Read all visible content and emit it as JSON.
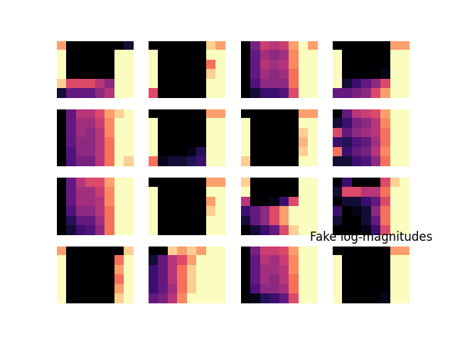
{
  "chart_data": [
    {
      "type": "heatmap",
      "color": "magma",
      "tick_labels": false,
      "cells": [
        [
          0.8,
          0,
          0,
          0,
          0,
          0,
          0,
          0.1
        ],
        [
          1,
          0,
          0,
          0,
          0,
          0,
          1,
          1
        ],
        [
          1,
          0,
          0,
          0,
          0,
          0,
          1,
          1
        ],
        [
          1,
          0,
          0,
          0,
          0,
          0,
          1,
          1
        ],
        [
          0.9,
          0.6,
          0.6,
          0.6,
          0.5,
          0.4,
          1,
          1
        ],
        [
          0.1,
          0.3,
          0.3,
          0.3,
          0.4,
          0.5,
          1,
          1
        ]
      ]
    },
    {
      "type": "heatmap",
      "color": "magma",
      "tick_labels": false,
      "cells": [
        [
          0,
          0,
          0,
          0,
          0,
          0,
          0.9,
          0.8
        ],
        [
          1,
          0,
          0,
          0,
          0,
          0,
          1,
          1
        ],
        [
          1,
          0,
          0,
          0,
          0,
          0,
          0.7,
          1
        ],
        [
          1,
          0,
          0,
          0,
          0,
          0,
          0.9,
          1
        ],
        [
          1,
          0,
          0,
          0,
          0,
          0,
          1,
          1
        ],
        [
          0.6,
          0,
          0,
          0,
          0,
          0,
          1,
          1
        ]
      ]
    },
    {
      "type": "heatmap",
      "color": "magma",
      "tick_labels": false,
      "cells": [
        [
          0,
          0.35,
          0.55,
          0.5,
          0.55,
          0.8,
          1,
          0.8
        ],
        [
          0,
          0.3,
          0.45,
          0.4,
          0.45,
          0.75,
          1,
          1
        ],
        [
          0,
          0.3,
          0.5,
          0.45,
          0.5,
          0.75,
          1,
          1
        ],
        [
          0,
          0.3,
          0.45,
          0.4,
          0.45,
          0.7,
          1,
          1
        ],
        [
          0,
          0.25,
          0.4,
          0.4,
          0.4,
          0.7,
          1,
          1
        ],
        [
          0,
          0.1,
          0.2,
          0.2,
          0.25,
          0.6,
          1,
          1
        ]
      ]
    },
    {
      "type": "heatmap",
      "color": "magma",
      "tick_labels": false,
      "cells": [
        [
          0,
          0,
          0,
          0,
          0,
          0,
          0.8,
          0.8
        ],
        [
          1,
          0,
          0,
          0,
          0,
          0,
          1,
          1
        ],
        [
          1,
          0,
          0,
          0,
          0,
          0,
          1,
          1
        ],
        [
          1,
          0,
          0,
          0,
          0,
          0.05,
          1,
          1
        ],
        [
          1,
          0.1,
          0.2,
          0.3,
          0.4,
          0.6,
          1,
          1
        ],
        [
          0.3,
          0.3,
          0.35,
          0.4,
          0.6,
          0.8,
          1,
          1
        ]
      ]
    },
    {
      "type": "heatmap",
      "color": "magma",
      "tick_labels": false,
      "cells": [
        [
          0,
          0.3,
          0.5,
          0.5,
          0.6,
          0.8,
          0.9,
          1
        ],
        [
          0,
          0.3,
          0.45,
          0.45,
          0.55,
          0.75,
          1,
          1
        ],
        [
          0,
          0.3,
          0.45,
          0.4,
          0.5,
          0.75,
          1,
          1
        ],
        [
          0,
          0.3,
          0.4,
          0.4,
          0.5,
          0.7,
          1,
          1
        ],
        [
          0,
          0.25,
          0.4,
          0.4,
          0.5,
          0.7,
          1,
          1
        ],
        [
          0,
          0.25,
          0.35,
          0.35,
          0.5,
          0.7,
          1,
          0.9
        ]
      ]
    },
    {
      "type": "heatmap",
      "color": "magma",
      "tick_labels": false,
      "cells": [
        [
          0,
          0,
          0,
          0,
          0,
          0,
          0.8,
          0.8
        ],
        [
          1,
          0,
          0,
          0,
          0,
          0,
          1,
          1
        ],
        [
          1,
          0,
          0,
          0,
          0,
          0,
          1,
          1
        ],
        [
          1,
          0,
          0,
          0,
          0,
          0,
          1,
          1
        ],
        [
          1,
          0,
          0,
          0,
          0.05,
          0.15,
          1,
          1
        ],
        [
          0.7,
          0.05,
          0.1,
          0.1,
          0.15,
          0.2,
          1,
          1
        ]
      ]
    },
    {
      "type": "heatmap",
      "color": "magma",
      "tick_labels": false,
      "cells": [
        [
          0,
          0,
          0,
          0,
          0,
          0,
          0.8,
          0.8
        ],
        [
          1,
          0,
          0,
          0,
          0,
          0,
          1,
          1
        ],
        [
          1,
          0,
          0,
          0,
          0,
          0,
          0.9,
          1
        ],
        [
          1,
          0,
          0,
          0,
          0,
          0,
          0.85,
          1
        ],
        [
          1,
          0,
          0,
          0,
          0,
          0,
          0.9,
          1
        ],
        [
          0.9,
          0,
          0,
          0,
          0,
          0,
          1,
          1
        ]
      ]
    },
    {
      "type": "heatmap",
      "color": "magma",
      "tick_labels": false,
      "cells": [
        [
          0,
          0.3,
          0.5,
          0.55,
          0.6,
          0.8,
          1,
          1
        ],
        [
          0.1,
          0.2,
          0.35,
          0.4,
          0.5,
          0.75,
          1,
          1
        ],
        [
          0.6,
          0.3,
          0.4,
          0.45,
          0.5,
          0.7,
          1,
          1
        ],
        [
          0.2,
          0.15,
          0.25,
          0.3,
          0.45,
          0.7,
          1,
          1
        ],
        [
          0.7,
          0.2,
          0.3,
          0.35,
          0.5,
          0.75,
          1,
          1
        ],
        [
          0.1,
          0.1,
          0.2,
          0.25,
          0.4,
          0.7,
          1,
          1
        ]
      ]
    },
    {
      "type": "heatmap",
      "color": "magma",
      "tick_labels": false,
      "cells": [
        [
          0,
          0.3,
          0.5,
          0.6,
          0.6,
          0.8,
          1,
          1
        ],
        [
          0,
          0.3,
          0.45,
          0.45,
          0.55,
          0.75,
          1,
          1
        ],
        [
          0,
          0.3,
          0.45,
          0.45,
          0.5,
          0.75,
          1,
          1
        ],
        [
          0,
          0.25,
          0.4,
          0.4,
          0.5,
          0.7,
          1,
          1
        ],
        [
          0,
          0.15,
          0.3,
          0.3,
          0.45,
          0.7,
          1,
          1
        ],
        [
          0,
          0.1,
          0.2,
          0.25,
          0.4,
          0.7,
          1,
          1
        ]
      ]
    },
    {
      "type": "heatmap",
      "color": "magma",
      "tick_labels": false,
      "cells": [
        [
          0,
          0,
          0,
          0,
          0,
          0,
          0.8,
          0.8
        ],
        [
          1,
          0,
          0,
          0,
          0,
          0,
          1,
          1
        ],
        [
          1,
          0,
          0,
          0,
          0,
          0,
          0.8,
          1
        ],
        [
          1,
          0,
          0,
          0,
          0,
          0,
          0.9,
          1
        ],
        [
          1,
          0,
          0,
          0,
          0,
          0,
          1,
          1
        ],
        [
          1,
          0,
          0,
          0,
          0,
          0,
          1,
          1
        ]
      ]
    },
    {
      "type": "heatmap",
      "color": "magma",
      "tick_labels": false,
      "cells": [
        [
          0.9,
          0,
          0,
          0,
          0,
          0,
          1,
          1
        ],
        [
          1,
          0,
          0,
          0,
          0,
          0,
          1,
          1
        ],
        [
          0.5,
          0,
          0,
          0.05,
          0.2,
          0.6,
          1,
          1
        ],
        [
          0.2,
          0.3,
          0.4,
          0.6,
          0.8,
          1,
          1,
          1
        ],
        [
          0.1,
          0.3,
          0.4,
          0.6,
          0.8,
          1,
          1,
          1
        ],
        [
          0,
          0.1,
          0.2,
          0.3,
          0.6,
          0.9,
          1,
          1
        ]
      ]
    },
    {
      "type": "heatmap",
      "color": "magma",
      "tick_labels": false,
      "cells": [
        [
          0,
          0.2,
          0,
          0,
          0,
          0.6,
          0.9,
          1
        ],
        [
          0.1,
          0.6,
          0.6,
          0.5,
          0.5,
          0.7,
          1,
          1
        ],
        [
          0,
          0.1,
          0.1,
          0.2,
          0.3,
          0.6,
          1,
          1
        ],
        [
          0.2,
          0,
          0.05,
          0.1,
          0.4,
          0.7,
          1,
          1
        ],
        [
          0.1,
          0,
          0,
          0.1,
          0.3,
          0.7,
          1,
          1
        ],
        [
          0,
          0,
          0,
          0.05,
          0.2,
          0.6,
          1,
          1
        ]
      ]
    },
    {
      "type": "heatmap",
      "color": "magma",
      "tick_labels": false,
      "cells": [
        [
          0.8,
          0,
          0,
          0,
          0,
          0,
          0,
          0.9
        ],
        [
          1,
          0,
          0,
          0,
          0,
          0,
          0.7,
          1
        ],
        [
          1,
          0,
          0,
          0,
          0,
          0,
          0.8,
          1
        ],
        [
          1,
          0,
          0,
          0,
          0,
          0,
          0.7,
          1
        ],
        [
          1,
          0,
          0,
          0,
          0,
          0,
          0.8,
          1
        ],
        [
          1,
          0,
          0,
          0,
          0,
          0,
          0.9,
          1
        ]
      ]
    },
    {
      "type": "heatmap",
      "color": "magma",
      "tick_labels": false,
      "cells": [
        [
          0,
          0,
          0.9,
          0.8,
          0.9,
          0.8,
          1,
          1
        ],
        [
          0.1,
          0.3,
          0.5,
          0.6,
          0.8,
          1,
          1,
          1
        ],
        [
          0.2,
          0.3,
          0.5,
          0.7,
          0.9,
          1,
          1,
          1
        ],
        [
          0.2,
          0.3,
          0.5,
          0.7,
          0.9,
          1,
          1,
          1
        ],
        [
          0.2,
          0.3,
          0.45,
          0.7,
          0.9,
          1,
          1,
          1
        ],
        [
          0.3,
          0.35,
          0.5,
          0.75,
          1,
          1,
          1,
          1
        ]
      ]
    },
    {
      "type": "heatmap",
      "color": "magma",
      "tick_labels": false,
      "cells": [
        [
          0,
          0.35,
          0.55,
          0.55,
          0.6,
          0.8,
          1,
          1
        ],
        [
          0,
          0.3,
          0.5,
          0.45,
          0.55,
          0.75,
          1,
          1
        ],
        [
          0,
          0.3,
          0.45,
          0.45,
          0.5,
          0.75,
          1,
          1
        ],
        [
          0,
          0.3,
          0.45,
          0.4,
          0.5,
          0.7,
          1,
          1
        ],
        [
          0,
          0.25,
          0.4,
          0.4,
          0.45,
          0.7,
          1,
          1
        ],
        [
          0,
          0.05,
          0.15,
          0.2,
          0.3,
          0.6,
          1,
          1
        ]
      ]
    },
    {
      "type": "heatmap",
      "color": "magma",
      "tick_labels": false,
      "title": "Fake log-magnitudes",
      "cells": [
        [
          0,
          0,
          0,
          0,
          0,
          0,
          0.8,
          0.8
        ],
        [
          1,
          0,
          0,
          0,
          0,
          0,
          1,
          1
        ],
        [
          1,
          0,
          0,
          0,
          0,
          0,
          1,
          1
        ],
        [
          1,
          0,
          0,
          0,
          0,
          0,
          1,
          1
        ],
        [
          1,
          0,
          0,
          0,
          0,
          0,
          1,
          1
        ],
        [
          1,
          0,
          0,
          0,
          0,
          0.05,
          1,
          1
        ]
      ]
    }
  ]
}
